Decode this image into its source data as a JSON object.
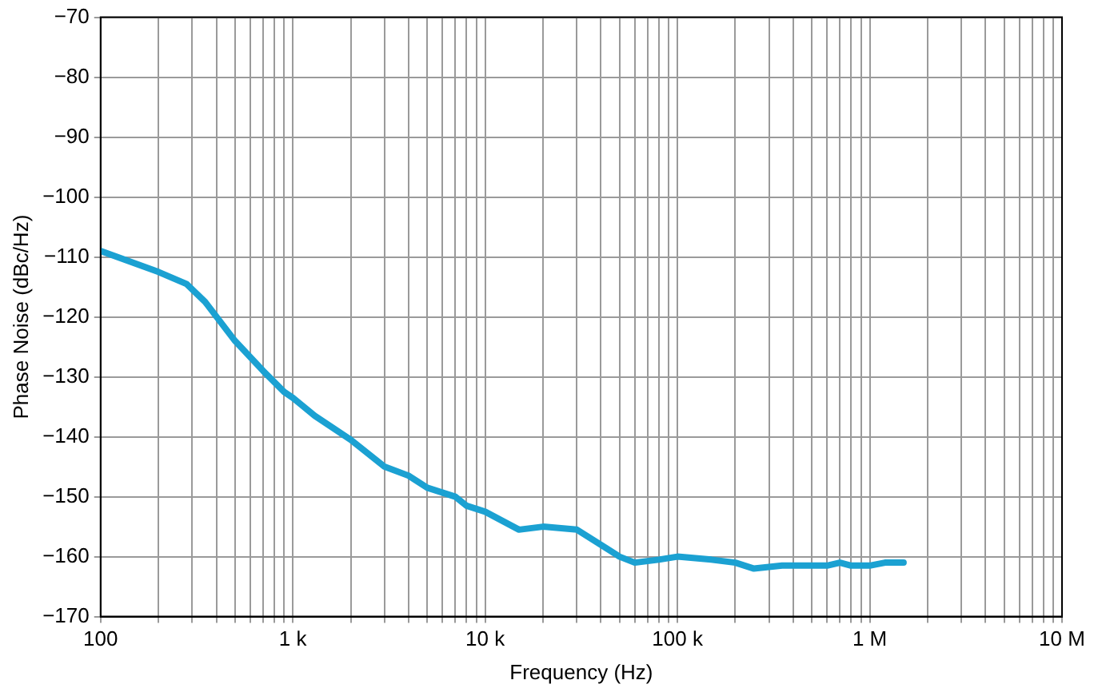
{
  "chart_data": {
    "type": "line",
    "xlabel": "Frequency (Hz)",
    "ylabel": "Phase Noise (dBc/Hz)",
    "x": [
      100,
      200,
      280,
      350,
      500,
      700,
      900,
      1000,
      1300,
      2000,
      3000,
      4000,
      5000,
      7000,
      8000,
      10000,
      15000,
      20000,
      30000,
      50000,
      60000,
      80000,
      100000,
      150000,
      200000,
      250000,
      350000,
      500000,
      600000,
      700000,
      800000,
      1000000,
      1200000,
      1500000
    ],
    "series": [
      {
        "color": "#1ba1d2",
        "values": [
          -109,
          -112.5,
          -114.5,
          -117.5,
          -124,
          -129,
          -132.5,
          -133.5,
          -136.5,
          -140.5,
          -145,
          -146.5,
          -148.5,
          -150,
          -151.5,
          -152.5,
          -155.5,
          -155,
          -155.5,
          -160,
          -161,
          -160.5,
          -160,
          -160.5,
          -161,
          -162,
          -161.5,
          -161.5,
          -161.5,
          -161,
          -161.5,
          -161.5,
          -161,
          -161
        ]
      }
    ],
    "log": "x",
    "xlim": [
      100,
      10000000
    ],
    "xticks": [
      {
        "value": 100,
        "label": "100"
      },
      {
        "value": 200,
        "label": null
      },
      {
        "value": 300,
        "label": null
      },
      {
        "value": 400,
        "label": null
      },
      {
        "value": 500,
        "label": null
      },
      {
        "value": 600,
        "label": null
      },
      {
        "value": 700,
        "label": null
      },
      {
        "value": 800,
        "label": null
      },
      {
        "value": 900,
        "label": null
      },
      {
        "value": 1000,
        "label": "1 k"
      },
      {
        "value": 2000,
        "label": null
      },
      {
        "value": 3000,
        "label": null
      },
      {
        "value": 4000,
        "label": null
      },
      {
        "value": 5000,
        "label": null
      },
      {
        "value": 6000,
        "label": null
      },
      {
        "value": 7000,
        "label": null
      },
      {
        "value": 8000,
        "label": null
      },
      {
        "value": 9000,
        "label": null
      },
      {
        "value": 10000,
        "label": "10 k"
      },
      {
        "value": 20000,
        "label": null
      },
      {
        "value": 30000,
        "label": null
      },
      {
        "value": 40000,
        "label": null
      },
      {
        "value": 50000,
        "label": null
      },
      {
        "value": 60000,
        "label": null
      },
      {
        "value": 70000,
        "label": null
      },
      {
        "value": 80000,
        "label": null
      },
      {
        "value": 90000,
        "label": null
      },
      {
        "value": 100000,
        "label": "100 k"
      },
      {
        "value": 200000,
        "label": null
      },
      {
        "value": 300000,
        "label": null
      },
      {
        "value": 400000,
        "label": null
      },
      {
        "value": 500000,
        "label": null
      },
      {
        "value": 600000,
        "label": null
      },
      {
        "value": 700000,
        "label": null
      },
      {
        "value": 800000,
        "label": null
      },
      {
        "value": 900000,
        "label": null
      },
      {
        "value": 1000000,
        "label": "1 M"
      },
      {
        "value": 2000000,
        "label": null
      },
      {
        "value": 3000000,
        "label": null
      },
      {
        "value": 4000000,
        "label": null
      },
      {
        "value": 5000000,
        "label": null
      },
      {
        "value": 6000000,
        "label": null
      },
      {
        "value": 7000000,
        "label": null
      },
      {
        "value": 8000000,
        "label": null
      },
      {
        "value": 9000000,
        "label": null
      },
      {
        "value": 10000000,
        "label": "10 M"
      }
    ],
    "ylim": [
      -170,
      -70
    ],
    "yticks": [
      {
        "value": -170,
        "label": "−170"
      },
      {
        "value": -160,
        "label": "−160"
      },
      {
        "value": -150,
        "label": "−150"
      },
      {
        "value": -140,
        "label": "−140"
      },
      {
        "value": -130,
        "label": "−130"
      },
      {
        "value": -120,
        "label": "−120"
      },
      {
        "value": -110,
        "label": "−110"
      },
      {
        "value": -100,
        "label": "−100"
      },
      {
        "value": -90,
        "label": "−90"
      },
      {
        "value": -80,
        "label": "−80"
      },
      {
        "value": -70,
        "label": "−70"
      }
    ],
    "grid": true,
    "legend": false,
    "marker": "none",
    "line_style": "solid"
  }
}
